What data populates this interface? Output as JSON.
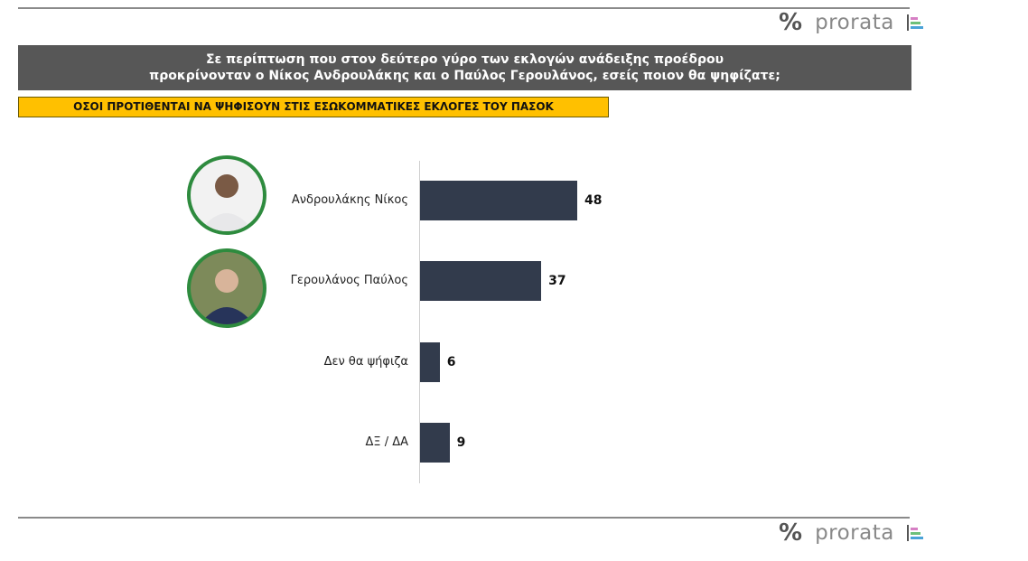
{
  "brand": {
    "name": "prorata",
    "symbol": "%",
    "colors": [
      "#d67fc4",
      "#6cc07a",
      "#4aa3d8"
    ]
  },
  "title_lines": [
    "Σε περίπτωση που στον δεύτερο γύρο των εκλογών ανάδειξης προέδρου",
    "προκρίνονταν ο Νίκος Ανδρουλάκης και ο Παύλος Γερουλάνος, εσείς ποιον θα ψηφίζατε;"
  ],
  "subtitle": "ΟΣΟΙ ΠΡΟΤΙΘΕΝΤΑΙ ΝΑ ΨΗΦΙΣΟΥΝ ΣΤΙΣ ΕΣΩΚΟΜΜΑΤΙΚΕΣ ΕΚΛΟΓΕΣ ΤΟΥ ΠΑΣΟΚ",
  "chart_data": {
    "type": "bar",
    "orientation": "horizontal",
    "categories": [
      "Ανδρουλάκης Νίκος",
      "Γερουλάνος Παύλος",
      "Δεν θα ψήφιζα",
      "ΔΞ / ΔΑ"
    ],
    "values": [
      48,
      37,
      6,
      9
    ],
    "bar_color": "#323b4c",
    "grid": false,
    "xlim": [
      0,
      100
    ]
  }
}
